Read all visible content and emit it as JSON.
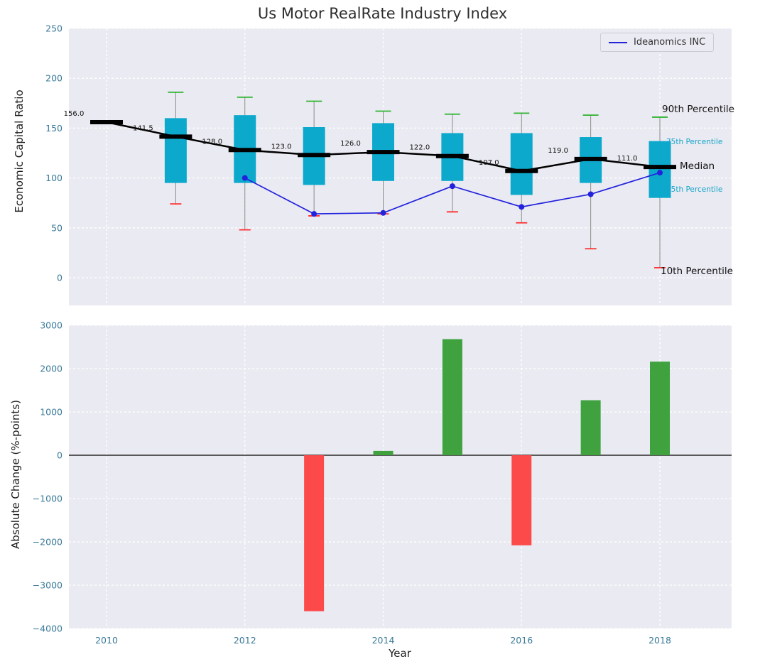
{
  "title": "Us Motor RealRate Industry Index",
  "legend_label": "Ideanomics INC",
  "labels": {
    "ylabel_top": "Economic Capital Ratio",
    "ylabel_bottom": "Absolute Change (%-points)",
    "xlabel": "Year",
    "p90": "90th Percentile",
    "p75": "75th Percentile",
    "median": "Median",
    "p25": "25th Percentile",
    "p10": "10th Percentile"
  },
  "colors": {
    "panel_bg": "#eaeaf2",
    "grid": "#ffffff",
    "tick_label": "#3a7a99",
    "box_fill": "#0da9cd",
    "median_line": "#000000",
    "company_line": "#2222dd",
    "cap_high": "#2db32d",
    "cap_low": "#ff2d2d",
    "whisker": "#8a8a8a",
    "bar_positive": "#3fa23f",
    "bar_negative": "#fc4a4a",
    "annotation_cyan": "#16a4c8",
    "annotation_black": "#111111"
  },
  "chart_data": [
    {
      "type": "boxplot+line",
      "panel": "top",
      "title": "Us Motor RealRate Industry Index",
      "ylabel": "Economic Capital Ratio",
      "ylim": [
        0,
        250
      ],
      "yticks": [
        0,
        50,
        100,
        150,
        200,
        250
      ],
      "xticks": [
        2010,
        2012,
        2014,
        2016,
        2018
      ],
      "grid": true,
      "legend_position": "upper right",
      "boxes": [
        {
          "year": 2010,
          "median": 156.0,
          "q1": null,
          "q3": null,
          "whisker_low": null,
          "whisker_high": null
        },
        {
          "year": 2011,
          "median": 141.5,
          "q1": 95,
          "q3": 160,
          "whisker_low": 74,
          "whisker_high": 186
        },
        {
          "year": 2012,
          "median": 128.0,
          "q1": 95,
          "q3": 163,
          "whisker_low": 48,
          "whisker_high": 181
        },
        {
          "year": 2013,
          "median": 123.0,
          "q1": 93,
          "q3": 151,
          "whisker_low": 62,
          "whisker_high": 177
        },
        {
          "year": 2014,
          "median": 126.0,
          "q1": 97,
          "q3": 155,
          "whisker_low": 64,
          "whisker_high": 167
        },
        {
          "year": 2015,
          "median": 122.0,
          "q1": 97,
          "q3": 145,
          "whisker_low": 66,
          "whisker_high": 164
        },
        {
          "year": 2016,
          "median": 107.0,
          "q1": 83,
          "q3": 145,
          "whisker_low": 55,
          "whisker_high": 165
        },
        {
          "year": 2017,
          "median": 119.0,
          "q1": 95,
          "q3": 141,
          "whisker_low": 29,
          "whisker_high": 163
        },
        {
          "year": 2018,
          "median": 111.0,
          "q1": 80,
          "q3": 137,
          "whisker_low": 10,
          "whisker_high": 161
        }
      ],
      "series": [
        {
          "name": "Ideanomics INC",
          "x": [
            2012,
            2013,
            2014,
            2015,
            2016,
            2017,
            2018
          ],
          "values": [
            100.0,
            64.0,
            65.0,
            91.8,
            71.0,
            83.7,
            105.3
          ]
        }
      ]
    },
    {
      "type": "bar",
      "panel": "bottom",
      "ylabel": "Absolute Change (%-points)",
      "xlabel": "Year",
      "ylim": [
        -4000,
        3000
      ],
      "yticks": [
        -4000,
        -3000,
        -2000,
        -1000,
        0,
        1000,
        2000,
        3000
      ],
      "xticks": [
        2010,
        2012,
        2014,
        2016,
        2018
      ],
      "x": [
        2013,
        2014,
        2015,
        2016,
        2017,
        2018
      ],
      "values": [
        -3600,
        100,
        2680,
        -2080,
        1270,
        2160
      ]
    }
  ]
}
